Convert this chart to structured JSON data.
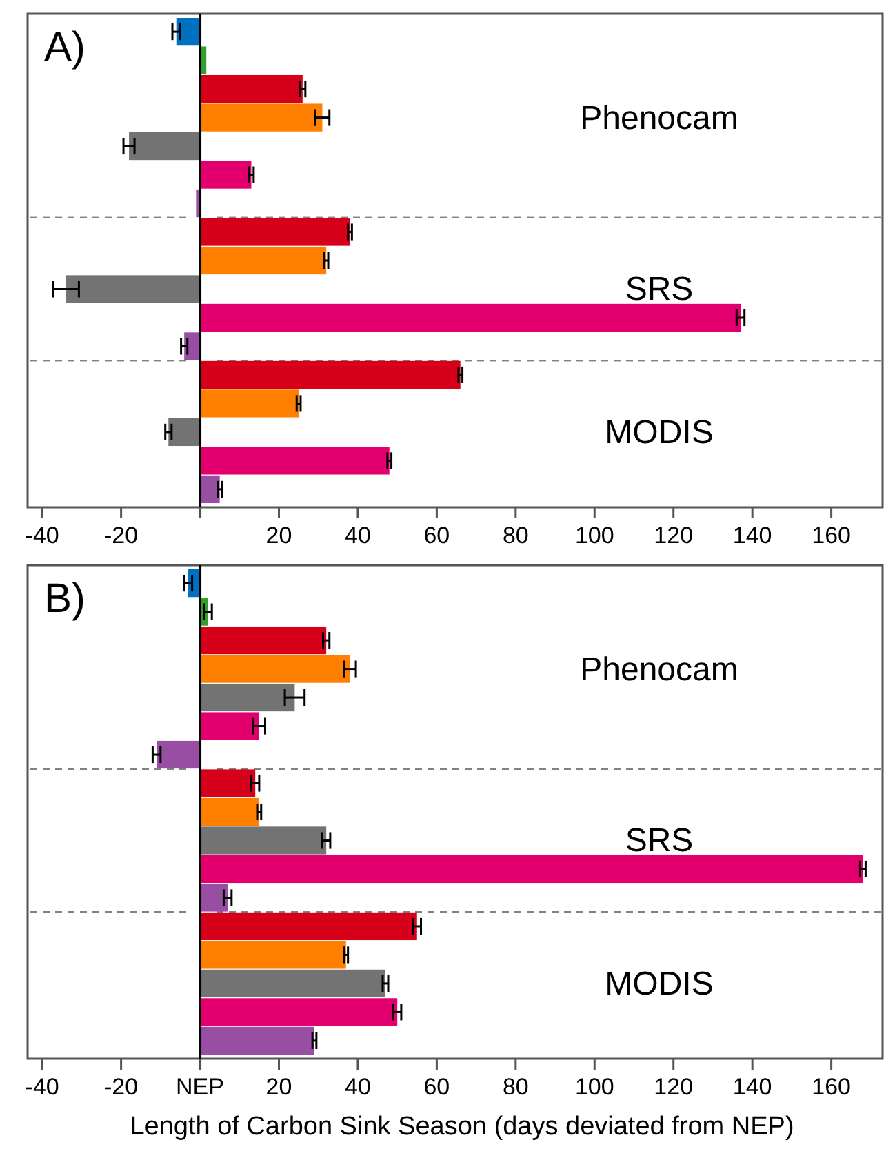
{
  "chart_data": [
    {
      "type": "bar",
      "orientation": "horizontal",
      "title": "A)",
      "categories": [
        null,
        null,
        null,
        null,
        null,
        null,
        null,
        null,
        null,
        null,
        null,
        null,
        null,
        null,
        null,
        null,
        null
      ],
      "values": [
        -6,
        1.6,
        26,
        31,
        -18,
        13,
        -1,
        38,
        32,
        -34,
        137,
        -4,
        66,
        25,
        -8,
        48,
        5
      ],
      "errors": [
        1,
        null,
        0.7,
        1.8,
        1.4,
        0.6,
        null,
        0.5,
        0.5,
        3.3,
        1,
        0.8,
        0.5,
        0.5,
        0.8,
        0.5,
        0.5
      ],
      "colors": [
        "#0070c0",
        "#33a02c",
        "#d7001a",
        "#ff7f00",
        "#737373",
        "#e3006e",
        "#984ea3",
        "#d7001a",
        "#ff7f00",
        "#737373",
        "#e3006e",
        "#984ea3",
        "#d7001a",
        "#ff7f00",
        "#737373",
        "#e3006e",
        "#984ea3"
      ],
      "xlim": [
        -43,
        173
      ],
      "xticks": [
        -40,
        -20,
        {
          "value": 0,
          "label": null
        },
        20,
        40,
        60,
        80,
        100,
        120,
        140,
        160
      ],
      "annotations": [
        "Phenocam",
        "SRS",
        "MODIS"
      ]
    },
    {
      "type": "bar",
      "orientation": "horizontal",
      "title": "B)",
      "categories": [
        null,
        null,
        null,
        null,
        null,
        null,
        null,
        null,
        null,
        null,
        null,
        null,
        null,
        null,
        null,
        null,
        null
      ],
      "values": [
        -3,
        2,
        32,
        38,
        24,
        15,
        -11,
        14,
        15,
        32,
        168,
        7,
        55,
        37,
        47,
        50,
        29
      ],
      "errors": [
        1,
        1,
        0.8,
        1.5,
        2.5,
        1.5,
        1,
        1,
        0.5,
        1,
        0.7,
        1,
        1,
        0.5,
        0.7,
        1,
        0.5
      ],
      "colors": [
        "#0070c0",
        "#33a02c",
        "#d7001a",
        "#ff7f00",
        "#737373",
        "#e3006e",
        "#984ea3",
        "#d7001a",
        "#ff7f00",
        "#737373",
        "#e3006e",
        "#984ea3",
        "#d7001a",
        "#ff7f00",
        "#737373",
        "#e3006e",
        "#984ea3"
      ],
      "xlim": [
        -43,
        173
      ],
      "xticks": [
        -40,
        -20,
        {
          "value": 0,
          "label": "NEP"
        },
        20,
        40,
        60,
        80,
        100,
        120,
        140,
        160
      ],
      "xlabel": "Length of Carbon Sink Season (days deviated from NEP)",
      "annotations": [
        "Phenocam",
        "SRS",
        "MODIS"
      ]
    }
  ]
}
